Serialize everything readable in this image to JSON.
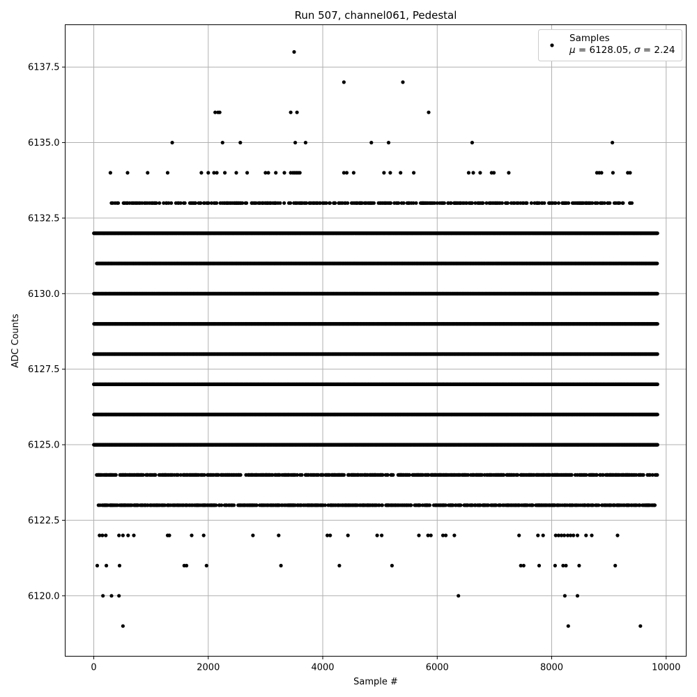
{
  "chart_data": {
    "type": "scatter",
    "title": "Run 507, channel061, Pedestal",
    "xlabel": "Sample #",
    "ylabel": "ADC Counts",
    "xlim": [
      -500,
      10350
    ],
    "ylim": [
      6118.0,
      6138.9
    ],
    "xticks": [
      0,
      2000,
      4000,
      6000,
      8000,
      10000
    ],
    "xtick_labels": [
      "0",
      "2000",
      "4000",
      "6000",
      "8000",
      "10000"
    ],
    "yticks": [
      6120.0,
      6122.5,
      6125.0,
      6127.5,
      6130.0,
      6132.5,
      6135.0,
      6137.5
    ],
    "ytick_labels": [
      "6120.0",
      "6122.5",
      "6125.0",
      "6127.5",
      "6130.0",
      "6132.5",
      "6135.0",
      "6137.5"
    ],
    "grid": true,
    "legend_position": "top-right",
    "marker_color": "#000000",
    "series": [
      {
        "name": "Samples",
        "stats_mu": "6128.05",
        "stats_sigma": "2.24",
        "levels": [
          {
            "y": 6132,
            "ranges": [
              [
                0,
                9850
              ]
            ]
          },
          {
            "y": 6131,
            "ranges": [
              [
                50,
                9850
              ]
            ]
          },
          {
            "y": 6130,
            "ranges": [
              [
                0,
                9850
              ]
            ]
          },
          {
            "y": 6129,
            "ranges": [
              [
                0,
                9850
              ]
            ]
          },
          {
            "y": 6128,
            "ranges": [
              [
                0,
                9850
              ]
            ]
          },
          {
            "y": 6127,
            "ranges": [
              [
                0,
                9850
              ]
            ]
          },
          {
            "y": 6126,
            "ranges": [
              [
                0,
                9850
              ]
            ]
          },
          {
            "y": 6125,
            "ranges": [
              [
                0,
                9850
              ]
            ]
          },
          {
            "y": 6124,
            "ranges": [
              [
                50,
                9850
              ]
            ]
          },
          {
            "y": 6123,
            "ranges": [
              [
                80,
                9800
              ]
            ]
          },
          {
            "y": 6133,
            "ranges": [
              [
                300,
                9400
              ]
            ]
          }
        ],
        "isolated_points": [
          {
            "x": 510,
            "y": 6119
          },
          {
            "x": 8290,
            "y": 6119
          },
          {
            "x": 9550,
            "y": 6119
          },
          {
            "x": 160,
            "y": 6120
          },
          {
            "x": 310,
            "y": 6120
          },
          {
            "x": 440,
            "y": 6120
          },
          {
            "x": 6370,
            "y": 6120
          },
          {
            "x": 8230,
            "y": 6120
          },
          {
            "x": 8450,
            "y": 6120
          },
          {
            "x": 60,
            "y": 6121
          },
          {
            "x": 220,
            "y": 6121
          },
          {
            "x": 450,
            "y": 6121
          },
          {
            "x": 1580,
            "y": 6121
          },
          {
            "x": 1620,
            "y": 6121
          },
          {
            "x": 1970,
            "y": 6121
          },
          {
            "x": 3270,
            "y": 6121
          },
          {
            "x": 4290,
            "y": 6121
          },
          {
            "x": 5210,
            "y": 6121
          },
          {
            "x": 7460,
            "y": 6121
          },
          {
            "x": 7510,
            "y": 6121
          },
          {
            "x": 7780,
            "y": 6121
          },
          {
            "x": 8060,
            "y": 6121
          },
          {
            "x": 8200,
            "y": 6121
          },
          {
            "x": 8250,
            "y": 6121
          },
          {
            "x": 8480,
            "y": 6121
          },
          {
            "x": 9110,
            "y": 6121
          },
          {
            "x": 100,
            "y": 6122
          },
          {
            "x": 150,
            "y": 6122
          },
          {
            "x": 210,
            "y": 6122
          },
          {
            "x": 440,
            "y": 6122
          },
          {
            "x": 510,
            "y": 6122
          },
          {
            "x": 600,
            "y": 6122
          },
          {
            "x": 700,
            "y": 6122
          },
          {
            "x": 1290,
            "y": 6122
          },
          {
            "x": 1320,
            "y": 6122
          },
          {
            "x": 1710,
            "y": 6122
          },
          {
            "x": 1920,
            "y": 6122
          },
          {
            "x": 2780,
            "y": 6122
          },
          {
            "x": 3230,
            "y": 6122
          },
          {
            "x": 4080,
            "y": 6122
          },
          {
            "x": 4130,
            "y": 6122
          },
          {
            "x": 4440,
            "y": 6122
          },
          {
            "x": 4950,
            "y": 6122
          },
          {
            "x": 5030,
            "y": 6122
          },
          {
            "x": 5680,
            "y": 6122
          },
          {
            "x": 5840,
            "y": 6122
          },
          {
            "x": 5890,
            "y": 6122
          },
          {
            "x": 6100,
            "y": 6122
          },
          {
            "x": 6150,
            "y": 6122
          },
          {
            "x": 6300,
            "y": 6122
          },
          {
            "x": 7430,
            "y": 6122
          },
          {
            "x": 7760,
            "y": 6122
          },
          {
            "x": 7850,
            "y": 6122
          },
          {
            "x": 8070,
            "y": 6122
          },
          {
            "x": 8120,
            "y": 6122
          },
          {
            "x": 8170,
            "y": 6122
          },
          {
            "x": 8220,
            "y": 6122
          },
          {
            "x": 8280,
            "y": 6122
          },
          {
            "x": 8330,
            "y": 6122
          },
          {
            "x": 8380,
            "y": 6122
          },
          {
            "x": 8450,
            "y": 6122
          },
          {
            "x": 8600,
            "y": 6122
          },
          {
            "x": 8700,
            "y": 6122
          },
          {
            "x": 9150,
            "y": 6122
          },
          {
            "x": 3500,
            "y": 6138
          },
          {
            "x": 4370,
            "y": 6137
          },
          {
            "x": 5400,
            "y": 6137
          },
          {
            "x": 2120,
            "y": 6136
          },
          {
            "x": 2170,
            "y": 6136
          },
          {
            "x": 2200,
            "y": 6136
          },
          {
            "x": 3440,
            "y": 6136
          },
          {
            "x": 3550,
            "y": 6136
          },
          {
            "x": 5850,
            "y": 6136
          },
          {
            "x": 1370,
            "y": 6135
          },
          {
            "x": 2250,
            "y": 6135
          },
          {
            "x": 2560,
            "y": 6135
          },
          {
            "x": 3520,
            "y": 6135
          },
          {
            "x": 3700,
            "y": 6135
          },
          {
            "x": 4850,
            "y": 6135
          },
          {
            "x": 5150,
            "y": 6135
          },
          {
            "x": 6610,
            "y": 6135
          },
          {
            "x": 9060,
            "y": 6135
          },
          {
            "x": 290,
            "y": 6134
          },
          {
            "x": 590,
            "y": 6134
          },
          {
            "x": 940,
            "y": 6134
          },
          {
            "x": 1290,
            "y": 6134
          },
          {
            "x": 1880,
            "y": 6134
          },
          {
            "x": 2000,
            "y": 6134
          },
          {
            "x": 2100,
            "y": 6134
          },
          {
            "x": 2150,
            "y": 6134
          },
          {
            "x": 2290,
            "y": 6134
          },
          {
            "x": 2490,
            "y": 6134
          },
          {
            "x": 2680,
            "y": 6134
          },
          {
            "x": 3000,
            "y": 6134
          },
          {
            "x": 3050,
            "y": 6134
          },
          {
            "x": 3180,
            "y": 6134
          },
          {
            "x": 3330,
            "y": 6134
          },
          {
            "x": 3440,
            "y": 6134
          },
          {
            "x": 3480,
            "y": 6134
          },
          {
            "x": 3510,
            "y": 6134
          },
          {
            "x": 3540,
            "y": 6134
          },
          {
            "x": 3570,
            "y": 6134
          },
          {
            "x": 3600,
            "y": 6134
          },
          {
            "x": 4370,
            "y": 6134
          },
          {
            "x": 4420,
            "y": 6134
          },
          {
            "x": 4540,
            "y": 6134
          },
          {
            "x": 5070,
            "y": 6134
          },
          {
            "x": 5180,
            "y": 6134
          },
          {
            "x": 5360,
            "y": 6134
          },
          {
            "x": 5590,
            "y": 6134
          },
          {
            "x": 6550,
            "y": 6134
          },
          {
            "x": 6630,
            "y": 6134
          },
          {
            "x": 6750,
            "y": 6134
          },
          {
            "x": 6950,
            "y": 6134
          },
          {
            "x": 6990,
            "y": 6134
          },
          {
            "x": 7250,
            "y": 6134
          },
          {
            "x": 8790,
            "y": 6134
          },
          {
            "x": 8830,
            "y": 6134
          },
          {
            "x": 8870,
            "y": 6134
          },
          {
            "x": 9070,
            "y": 6134
          },
          {
            "x": 9330,
            "y": 6134
          },
          {
            "x": 9370,
            "y": 6134
          }
        ]
      }
    ]
  }
}
